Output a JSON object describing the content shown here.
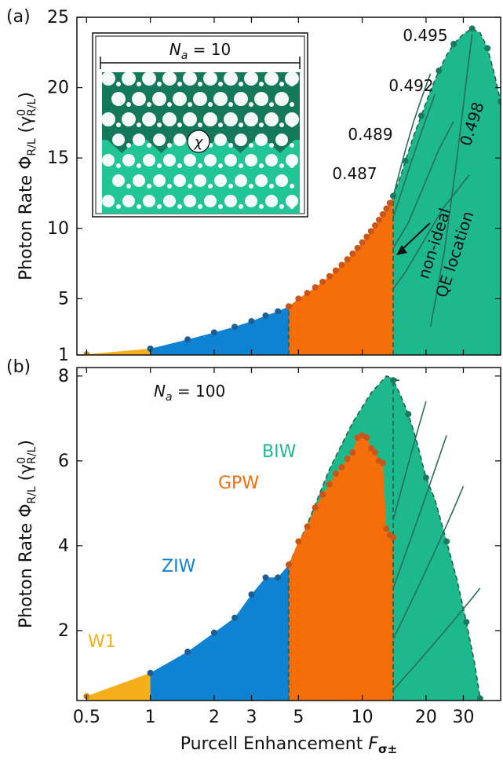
{
  "colors": {
    "W1": "#f6ae1a",
    "ZIW": "#0f83d2",
    "GPW": "#f66e0a",
    "BIW": "#1db98c",
    "BIW_dark": "#1a7a60",
    "GPW_dot": "#c8561a",
    "ZIW_dot": "#1d5e94",
    "curve": "#2a6d59",
    "inset_top": "#14785a",
    "inset_bottom": "#22c596"
  },
  "chart_data": [
    {
      "panel": "(a)",
      "type": "area",
      "xlabel": "Purcell Enhancement F_{σ±}",
      "ylabel": "Photon Rate Φ_{R/L} (γ⁰_{R/L})",
      "x_scale": "log",
      "xlim": [
        0.45,
        45
      ],
      "ylim": [
        1,
        25
      ],
      "x_ticks": [
        0.5,
        1,
        2,
        3,
        5,
        10,
        20,
        30
      ],
      "x_tick_labels": [
        "0.5",
        "1",
        "2",
        "3",
        "5",
        "10",
        "20",
        "30"
      ],
      "y_ticks": [
        1,
        5,
        10,
        15,
        20,
        25
      ],
      "y_tick_labels": [
        "1",
        "5",
        "10",
        "15",
        "20",
        "25"
      ],
      "regions": [
        {
          "name": "W1",
          "x": [
            0.5,
            1.0
          ],
          "y": [
            1.05,
            1.45
          ]
        },
        {
          "name": "ZIW",
          "x": [
            1.0,
            1.5,
            2.0,
            2.5,
            3.0,
            3.5,
            4.0,
            4.5
          ],
          "y": [
            1.45,
            2.1,
            2.6,
            3.0,
            3.4,
            3.8,
            4.1,
            4.45
          ]
        },
        {
          "name": "GPW",
          "x": [
            4.5,
            5.0,
            5.5,
            6.0,
            6.5,
            7.0,
            7.5,
            8.0,
            8.5,
            9.0,
            9.5,
            10.0,
            10.5,
            11.0,
            11.5,
            12.0,
            12.5,
            13.0,
            13.5,
            14.0
          ],
          "y": [
            4.45,
            5.0,
            5.4,
            5.8,
            6.2,
            6.6,
            7.0,
            7.4,
            7.8,
            8.2,
            8.6,
            9.0,
            9.4,
            9.8,
            10.2,
            10.6,
            11.0,
            11.4,
            11.8,
            12.3
          ]
        },
        {
          "name": "BIW",
          "x": [
            14.0,
            15.0,
            16.0,
            17.5,
            19.0,
            21.0,
            23.0,
            25.0,
            27.0,
            30.0,
            33.0,
            36.0,
            39.0,
            42.0,
            45.0
          ],
          "y": [
            12.3,
            13.5,
            14.8,
            16.6,
            18.0,
            19.8,
            21.2,
            22.3,
            23.1,
            23.8,
            24.2,
            23.9,
            22.8,
            21.0,
            19.0
          ]
        }
      ],
      "contours": [
        {
          "label": "0.487",
          "x": [
            14.0,
            16.0,
            19.0,
            24.0,
            32.0
          ],
          "y": [
            5.7,
            6.9,
            8.8,
            11.4,
            13.8
          ]
        },
        {
          "label": "0.489",
          "x": [
            14.0,
            16.5,
            19.5,
            23.0,
            27.0
          ],
          "y": [
            8.6,
            10.4,
            13.0,
            15.6,
            17.6
          ]
        },
        {
          "label": "0.492",
          "x": [
            14.0,
            15.5,
            17.0,
            19.5,
            22.0
          ],
          "y": [
            10.8,
            12.8,
            14.7,
            17.3,
            19.5
          ]
        },
        {
          "label": "0.495",
          "x": [
            14.0,
            15.0,
            16.0,
            17.5,
            19.0,
            21.0
          ],
          "y": [
            12.3,
            14.0,
            15.6,
            17.6,
            19.2,
            21.0
          ]
        },
        {
          "label": "0.498",
          "x": [
            21.0,
            24.5,
            28.0,
            31.0,
            33.0
          ],
          "y": [
            3.0,
            8.5,
            15.0,
            20.5,
            23.8
          ]
        }
      ],
      "contour_labels": [
        "0.495",
        "0.492",
        "0.489",
        "0.487",
        "0.498"
      ],
      "annotations": [
        "non-ideal",
        "QE location"
      ],
      "inset": {
        "title": "N_a = 10",
        "symbol": "χ"
      }
    },
    {
      "panel": "(b)",
      "type": "area",
      "xlabel": "Purcell Enhancement F_{σ±}",
      "ylabel": "Photon Rate Φ_{R/L} (γ⁰_{R/L})",
      "x_scale": "log",
      "xlim": [
        0.45,
        45
      ],
      "ylim": [
        0.35,
        8.2
      ],
      "x_ticks": [
        0.5,
        1,
        2,
        3,
        5,
        10,
        20,
        30
      ],
      "x_tick_labels": [
        "0.5",
        "1",
        "2",
        "3",
        "5",
        "10",
        "20",
        "30"
      ],
      "y_ticks": [
        2,
        4,
        6,
        8
      ],
      "y_tick_labels": [
        "2",
        "4",
        "6",
        "8"
      ],
      "regions": [
        {
          "name": "W1",
          "x": [
            0.5,
            1.0
          ],
          "y": [
            0.45,
            1.0
          ]
        },
        {
          "name": "ZIW",
          "x": [
            1.0,
            1.5,
            2.0,
            2.5,
            3.0,
            3.5,
            4.0,
            4.5
          ],
          "y": [
            1.0,
            1.5,
            1.95,
            2.3,
            2.85,
            3.25,
            3.25,
            3.55
          ]
        },
        {
          "name": "GPW",
          "x": [
            4.5,
            5.0,
            5.5,
            6.0,
            6.5,
            7.0,
            7.5,
            8.0,
            8.5,
            9.0,
            9.5,
            10.0,
            10.5,
            11.0,
            11.5,
            12.0,
            12.5,
            13.0,
            13.5,
            14.0
          ],
          "y": [
            3.55,
            4.1,
            4.45,
            4.9,
            5.2,
            5.45,
            5.7,
            5.85,
            6.05,
            6.2,
            6.55,
            6.6,
            6.55,
            6.3,
            6.2,
            6.0,
            5.95,
            4.4,
            4.25,
            4.2
          ]
        },
        {
          "name": "BIW",
          "x": [
            14.0,
            15.0,
            16.5,
            18.0,
            20.0,
            22.0,
            25.0,
            28.0,
            31.0,
            34.0,
            36.0
          ],
          "y": [
            7.9,
            7.6,
            7.1,
            6.5,
            5.6,
            5.1,
            4.1,
            3.2,
            2.2,
            1.2,
            0.4
          ]
        }
      ],
      "upper_envelope": {
        "x": [
          4.5,
          5.5,
          7.0,
          9.0,
          11.0,
          13.0,
          15.0
        ],
        "y": [
          3.55,
          4.5,
          5.8,
          6.9,
          7.6,
          8.0,
          7.9
        ]
      },
      "region_labels": [
        "W1",
        "ZIW",
        "GPW",
        "BIW"
      ],
      "inset_text": "N_a = 100"
    }
  ]
}
